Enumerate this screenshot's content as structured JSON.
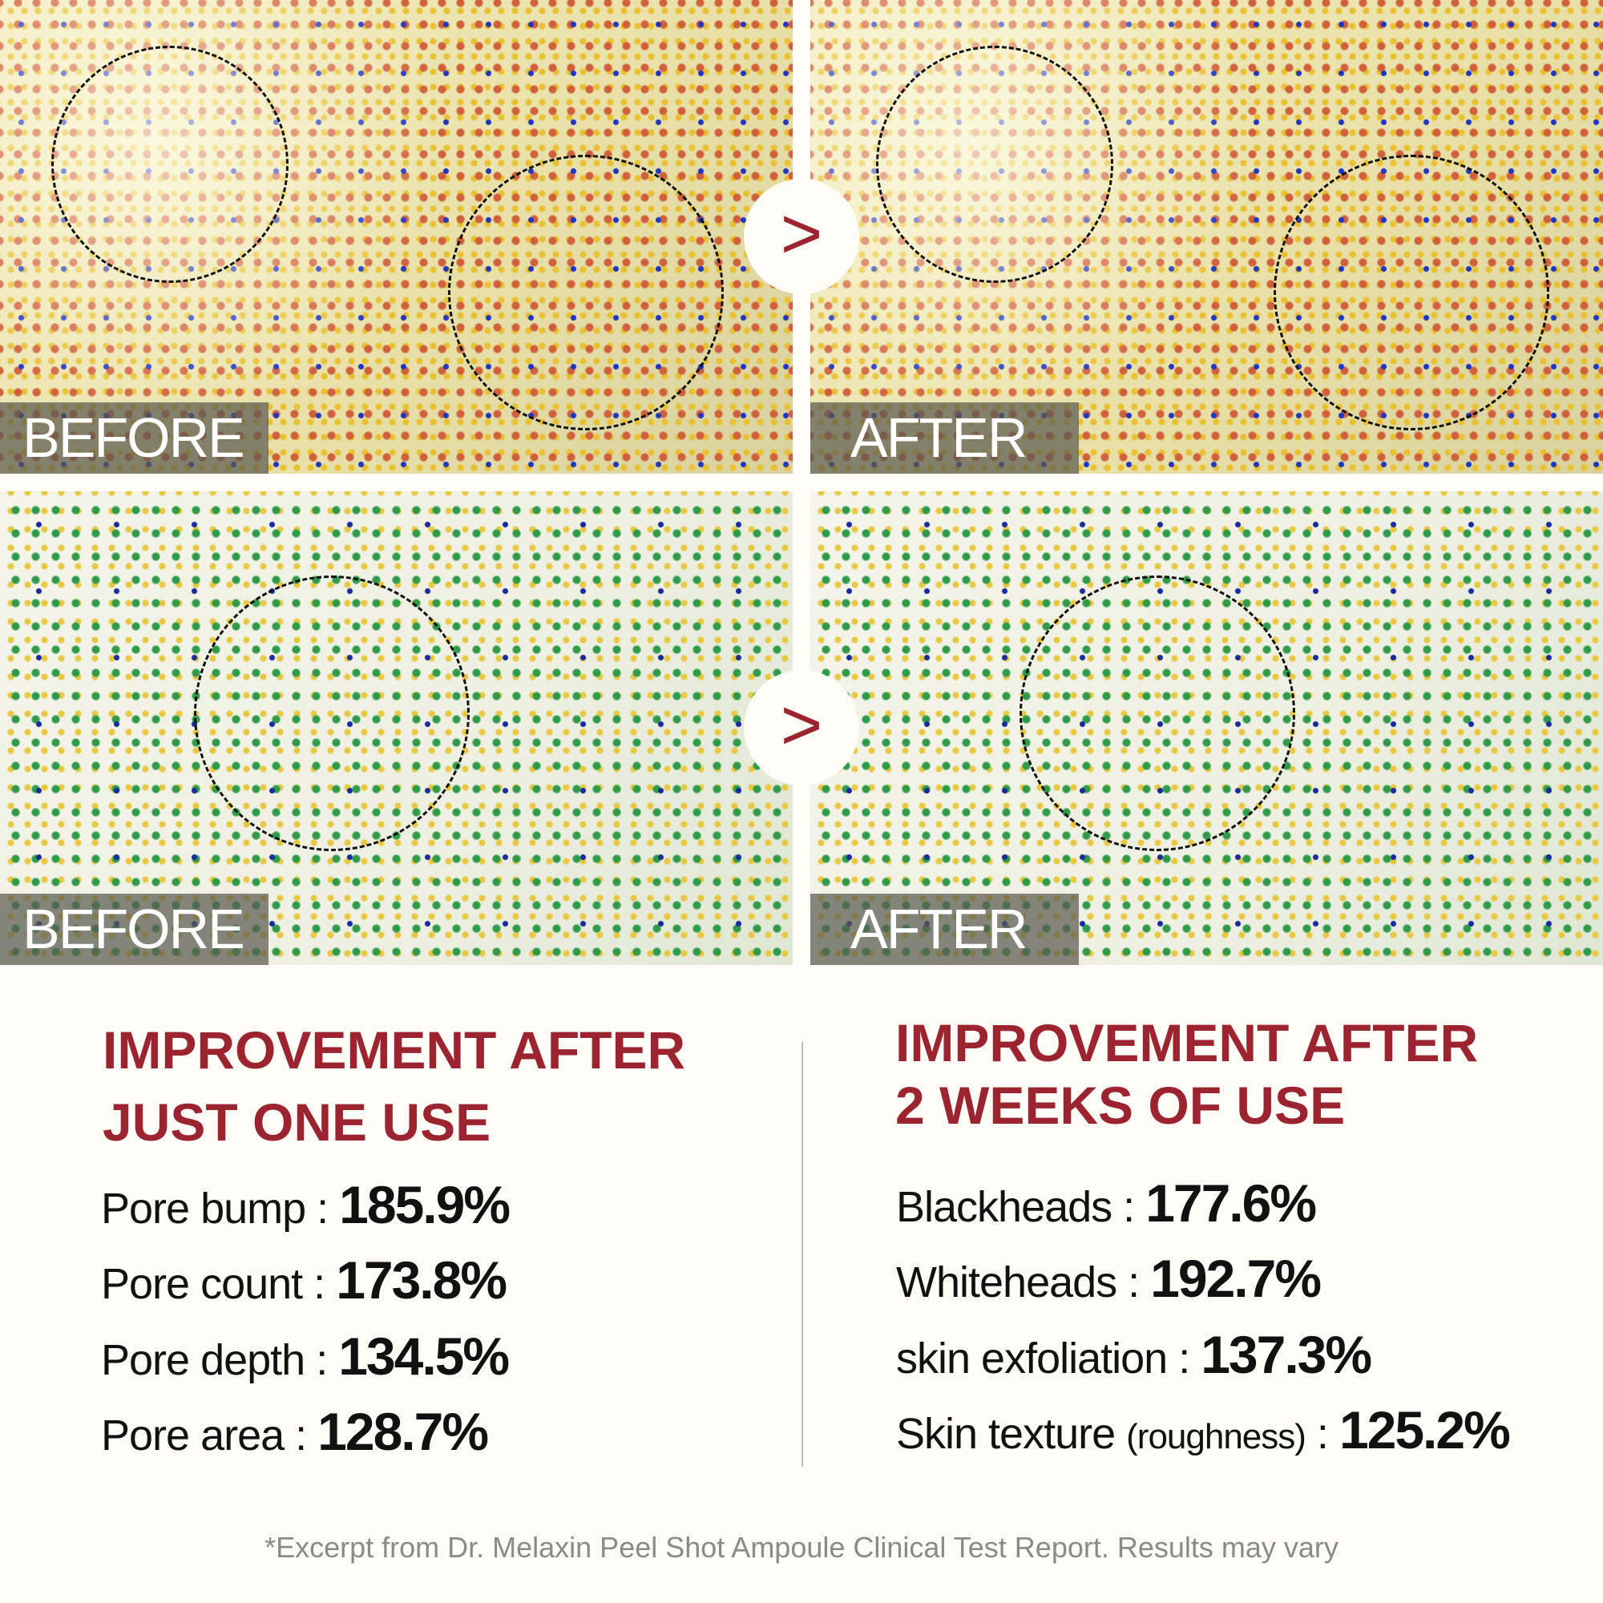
{
  "panels": {
    "before_label": "BEFORE",
    "after_label": "AFTER",
    "arrow_glyph": ">"
  },
  "left": {
    "heading_line1": "IMPROVEMENT AFTER",
    "heading_line2": "JUST ONE USE",
    "stats": [
      {
        "label": "Pore bump : ",
        "value": "185.9%"
      },
      {
        "label": "Pore count : ",
        "value": "173.8%"
      },
      {
        "label": "Pore depth : ",
        "value": "134.5%"
      },
      {
        "label": "Pore area : ",
        "value": "128.7%"
      }
    ]
  },
  "right": {
    "heading_line1": "IMPROVEMENT AFTER",
    "heading_line2": "2 WEEKS OF USE",
    "stats": [
      {
        "label": "Blackheads : ",
        "value": "177.6%"
      },
      {
        "label": "Whiteheads : ",
        "value": "192.7%"
      },
      {
        "label": "skin exfoliation : ",
        "value": "137.3%"
      },
      {
        "label": "Skin texture ",
        "note": "(roughness)",
        "sep": " : ",
        "value": "125.2%"
      }
    ]
  },
  "footnote": "*Excerpt from Dr. Melaxin Peel Shot Ampoule Clinical Test Report. Results may vary",
  "colors": {
    "accent": "#9b2430",
    "background": "#fdfcf6"
  }
}
